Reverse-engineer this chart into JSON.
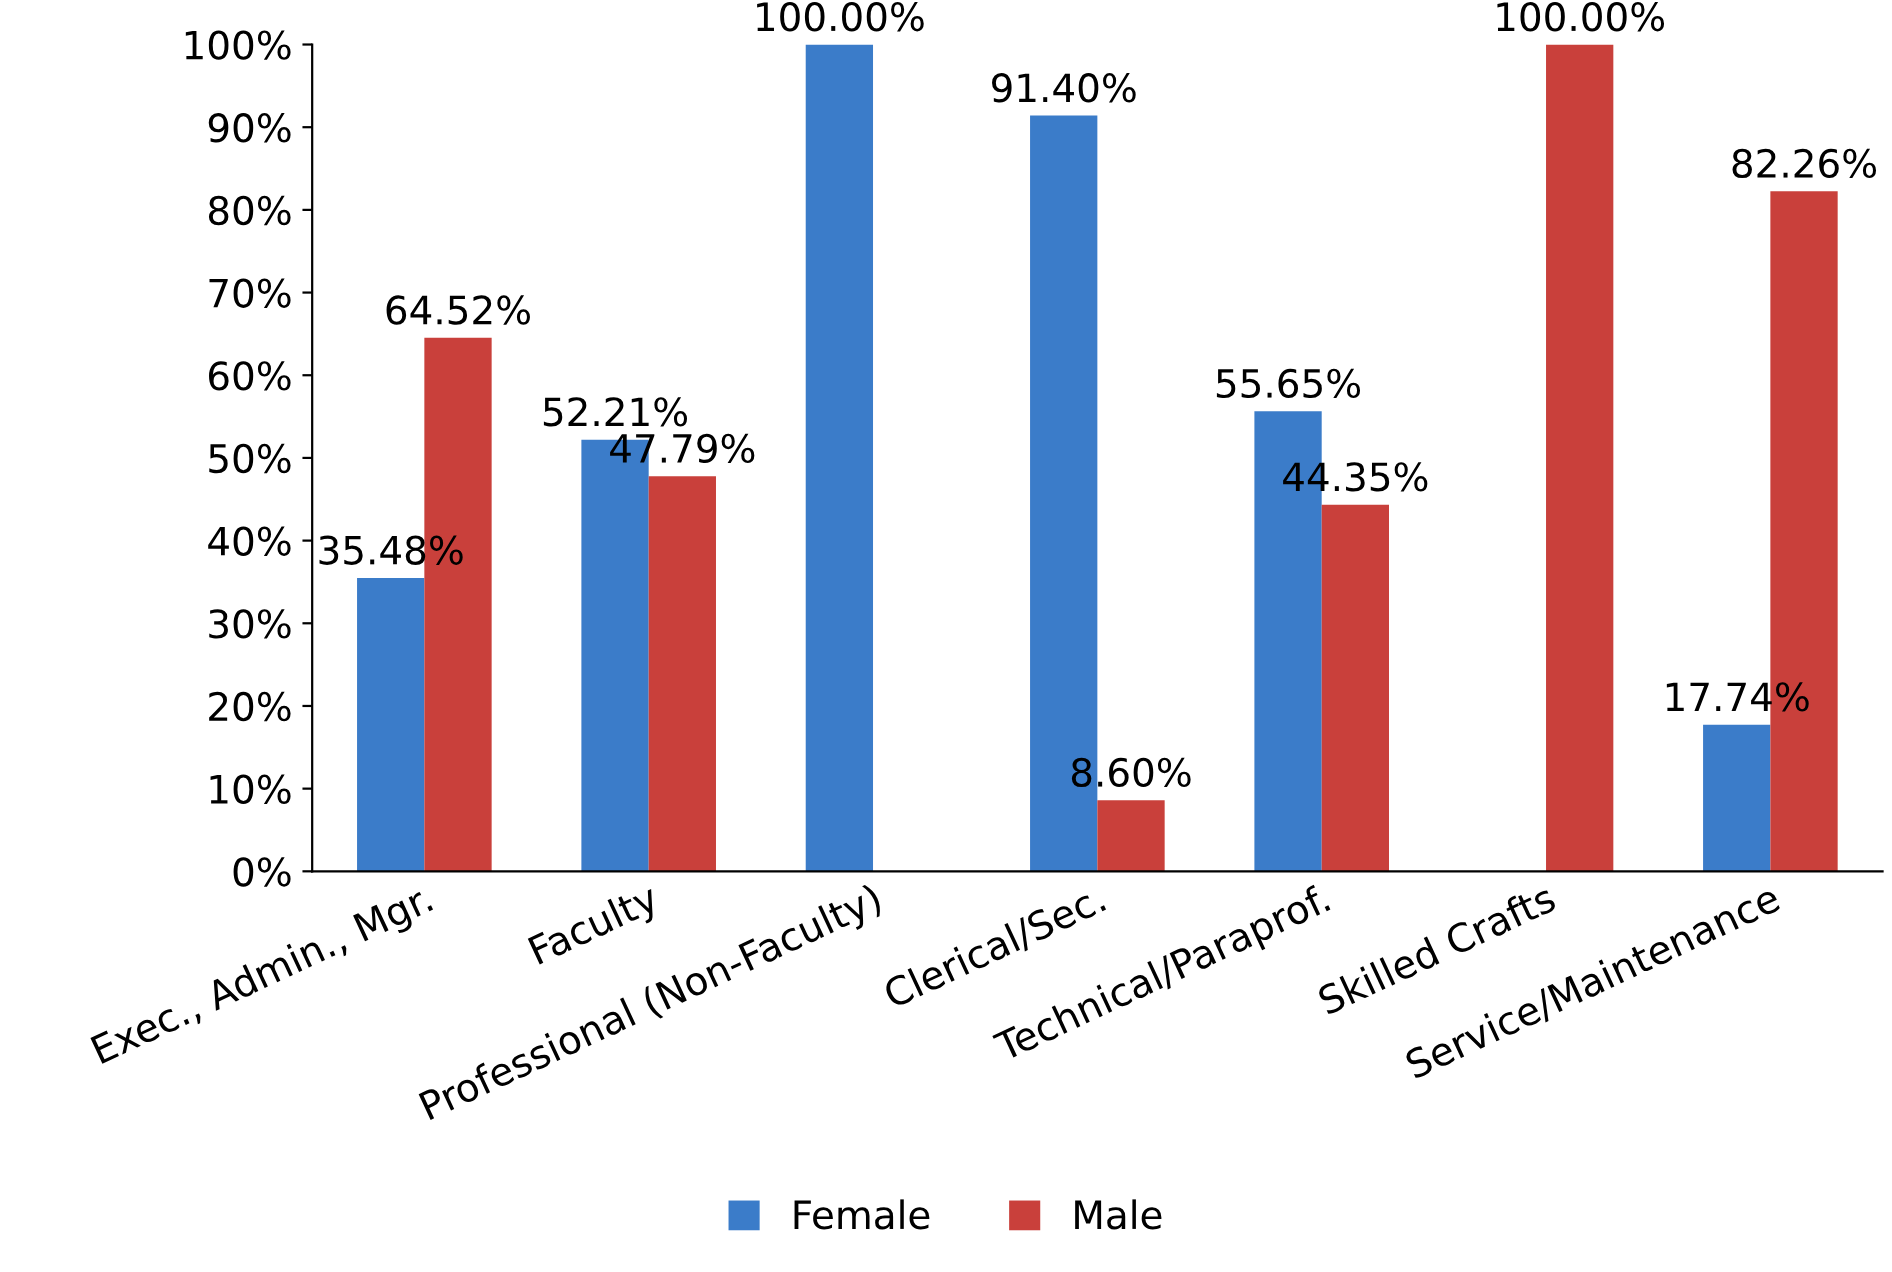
{
  "chart_data": {
    "type": "bar",
    "categories": [
      "Exec., Admin., Mgr.",
      "Faculty",
      "Professional (Non-Faculty)",
      "Clerical/Sec.",
      "Technical/Paraprof.",
      "Skilled Crafts",
      "Service/Maintenance"
    ],
    "series": [
      {
        "name": "Female",
        "color": "#3b7cc9",
        "values": [
          35.48,
          52.21,
          100,
          91.4,
          55.65,
          null,
          17.74
        ],
        "value_labels": [
          "35.48%",
          "52.21%",
          "100.00%",
          "91.40%",
          "55.65%",
          null,
          "17.74%"
        ]
      },
      {
        "name": "Male",
        "color": "#c9403b",
        "values": [
          64.52,
          47.79,
          null,
          8.6,
          44.35,
          100,
          82.26
        ],
        "value_labels": [
          "64.52%",
          "47.79%",
          null,
          "8.60%",
          "44.35%",
          "100.00%",
          "82.26%"
        ]
      }
    ],
    "ylim": [
      0,
      100
    ],
    "yticks": [
      {
        "value": 0,
        "label": "0%"
      },
      {
        "value": 10,
        "label": "10%"
      },
      {
        "value": 20,
        "label": "20%"
      },
      {
        "value": 30,
        "label": "30%"
      },
      {
        "value": 40,
        "label": "40%"
      },
      {
        "value": 50,
        "label": "50%"
      },
      {
        "value": 60,
        "label": "60%"
      },
      {
        "value": 70,
        "label": "70%"
      },
      {
        "value": 80,
        "label": "80%"
      },
      {
        "value": 90,
        "label": "90%"
      },
      {
        "value": 100,
        "label": "100%"
      }
    ],
    "grid": false,
    "legend": "bottom"
  }
}
